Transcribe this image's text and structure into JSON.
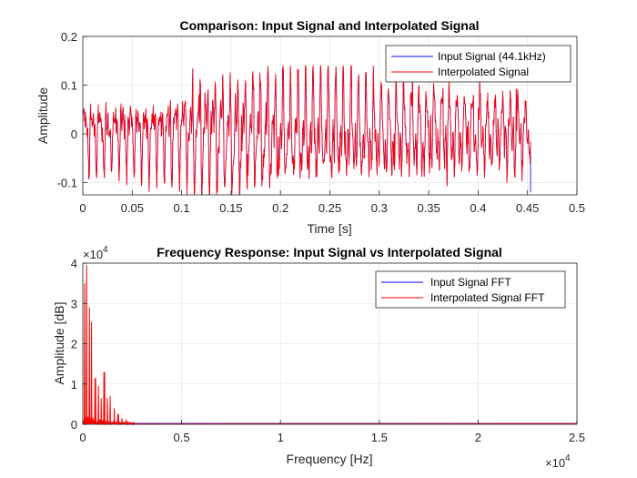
{
  "chart_data": [
    {
      "type": "line",
      "title": "Comparison: Input Signal and Interpolated Signal",
      "xlabel": "Time [s]",
      "ylabel": "Amplitude",
      "xlim": [
        0,
        0.5
      ],
      "ylim": [
        -0.125,
        0.2
      ],
      "xticks": [
        "0",
        "0.05",
        "0.1",
        "0.15",
        "0.2",
        "0.25",
        "0.3",
        "0.35",
        "0.4",
        "0.45",
        "0.5"
      ],
      "yticks": [
        "-0.1",
        "0",
        "0.1",
        "0.2"
      ],
      "grid": true,
      "legend_position": "top-right",
      "signal_end_time": 0.453,
      "series": [
        {
          "name": "Input Signal (44.1kHz)",
          "color": "#0000ff"
        },
        {
          "name": "Interpolated Signal",
          "color": "#ff0000"
        }
      ]
    },
    {
      "type": "line",
      "title": "Frequency Response: Input Signal vs Interpolated Signal",
      "xlabel": "Frequency [Hz]",
      "ylabel": "Amplitude [dB]",
      "xlim": [
        0,
        25000
      ],
      "ylim": [
        0,
        40000
      ],
      "xticks": [
        "0",
        "0.5",
        "1",
        "1.5",
        "2",
        "2.5"
      ],
      "yticks": [
        "0",
        "1",
        "2",
        "3",
        "4"
      ],
      "x_exponent": "×10",
      "x_exponent_power": "4",
      "y_exponent": "×10",
      "y_exponent_power": "4",
      "grid": true,
      "legend_position": "top-right",
      "series": [
        {
          "name": "Input Signal FFT",
          "color": "#0000ff"
        },
        {
          "name": "Interpolated Signal FFT",
          "color": "#ff0000"
        }
      ],
      "peaks": [
        {
          "x": 100,
          "y": 35000
        },
        {
          "x": 200,
          "y": 39500
        },
        {
          "x": 350,
          "y": 29000
        },
        {
          "x": 450,
          "y": 25500
        },
        {
          "x": 650,
          "y": 11500
        },
        {
          "x": 800,
          "y": 9500
        },
        {
          "x": 950,
          "y": 6500
        },
        {
          "x": 1100,
          "y": 13000
        },
        {
          "x": 1250,
          "y": 6500
        },
        {
          "x": 1400,
          "y": 7000
        },
        {
          "x": 1600,
          "y": 4000
        },
        {
          "x": 1800,
          "y": 2500
        },
        {
          "x": 2000,
          "y": 1500
        },
        {
          "x": 2200,
          "y": 1200
        }
      ]
    }
  ]
}
